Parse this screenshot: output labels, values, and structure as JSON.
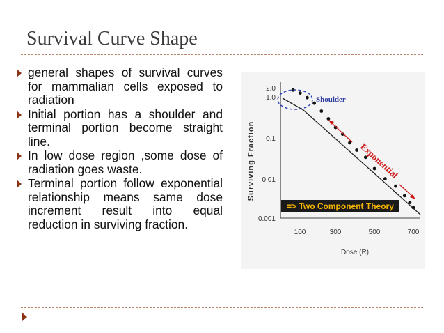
{
  "slide": {
    "title": "Survival Curve Shape",
    "bullets": [
      "general shapes of survival curves for mammalian cells exposed to radiation",
      "Initial portion has a shoulder and terminal portion become straight line.",
      "In low dose region ,some dose of radiation goes waste.",
      "Terminal portion follow exponential relationship means same dose increment result into equal reduction in surviving fraction."
    ],
    "accent_color": "#8a3315",
    "rule_color": "#b8866a"
  },
  "chart_data": {
    "type": "scatter",
    "title": "",
    "xlabel": "Dose (R)",
    "ylabel": "Surviving Fraction",
    "x_ticks": [
      "100",
      "300",
      "500",
      "700"
    ],
    "y_ticks": [
      "2.0",
      "1.0",
      "0.1",
      "0.01",
      "0.001"
    ],
    "xlim": [
      0,
      700
    ],
    "ylim": [
      0.001,
      2.0
    ],
    "yscale": "log",
    "grid": false,
    "series": [
      {
        "points": [
          [
            20,
            1.3
          ],
          [
            60,
            1.1
          ],
          [
            100,
            0.85
          ],
          [
            140,
            0.62
          ],
          [
            180,
            0.4
          ],
          [
            220,
            0.26
          ],
          [
            260,
            0.16
          ],
          [
            300,
            0.11
          ],
          [
            340,
            0.068
          ],
          [
            380,
            0.045
          ],
          [
            430,
            0.03
          ],
          [
            480,
            0.016
          ],
          [
            540,
            0.009
          ],
          [
            600,
            0.006
          ],
          [
            650,
            0.0035
          ],
          [
            680,
            0.0024
          ],
          [
            700,
            0.0018
          ]
        ]
      }
    ],
    "annotations": {
      "shoulder": "Shoulder",
      "exponential": "Exponential",
      "theory": "=> Two Component Theory"
    },
    "colors": {
      "exponential": "#cc1d1d",
      "banner_bg": "#1a1a1a",
      "banner_text": "#f5b400",
      "shoulder_circle": "#2a3fb5",
      "shoulder_label": "#2b3a9f"
    }
  }
}
